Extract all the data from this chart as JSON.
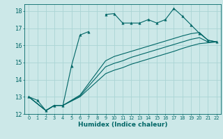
{
  "xlabel": "Humidex (Indice chaleur)",
  "ylabel": "",
  "bg_color": "#cce8e8",
  "grid_color": "#aad4d4",
  "line_color": "#006666",
  "xlim": [
    -0.5,
    22.5
  ],
  "ylim": [
    12,
    18.4
  ],
  "xticks": [
    0,
    1,
    2,
    3,
    4,
    5,
    6,
    7,
    8,
    9,
    10,
    11,
    12,
    13,
    14,
    15,
    16,
    17,
    18,
    19,
    20,
    21,
    22
  ],
  "yticks": [
    12,
    13,
    14,
    15,
    16,
    17,
    18
  ],
  "series": [
    {
      "x": [
        0,
        1,
        2,
        3,
        4,
        5,
        6,
        7,
        8,
        9,
        10,
        11,
        12,
        13,
        14,
        15,
        16,
        17,
        18,
        19,
        20,
        21,
        22
      ],
      "y": [
        13.0,
        12.8,
        12.2,
        12.5,
        12.5,
        14.8,
        16.6,
        16.8,
        null,
        17.8,
        17.85,
        17.3,
        17.3,
        17.3,
        17.5,
        17.3,
        17.5,
        18.15,
        17.7,
        17.2,
        16.7,
        16.3,
        16.2
      ],
      "marker": true
    },
    {
      "x": [
        0,
        2,
        3,
        4,
        6,
        9,
        10,
        11,
        12,
        13,
        14,
        15,
        16,
        17,
        18,
        19,
        20,
        21,
        22
      ],
      "y": [
        13.0,
        12.2,
        12.5,
        12.5,
        13.1,
        15.1,
        15.35,
        15.5,
        15.65,
        15.8,
        15.95,
        16.1,
        16.25,
        16.4,
        16.55,
        16.68,
        16.75,
        16.3,
        16.2
      ],
      "marker": false
    },
    {
      "x": [
        0,
        2,
        3,
        4,
        6,
        9,
        10,
        11,
        12,
        13,
        14,
        15,
        16,
        17,
        18,
        19,
        20,
        21,
        22
      ],
      "y": [
        13.0,
        12.2,
        12.5,
        12.5,
        13.05,
        14.75,
        14.95,
        15.1,
        15.3,
        15.45,
        15.6,
        15.75,
        15.9,
        16.05,
        16.2,
        16.35,
        16.45,
        16.2,
        16.2
      ],
      "marker": false
    },
    {
      "x": [
        0,
        2,
        3,
        4,
        6,
        9,
        10,
        11,
        12,
        13,
        14,
        15,
        16,
        17,
        18,
        19,
        20,
        21,
        22
      ],
      "y": [
        13.0,
        12.2,
        12.5,
        12.5,
        13.0,
        14.35,
        14.55,
        14.7,
        14.9,
        15.05,
        15.2,
        15.35,
        15.5,
        15.65,
        15.82,
        15.97,
        16.1,
        16.15,
        16.2
      ],
      "marker": false
    }
  ]
}
